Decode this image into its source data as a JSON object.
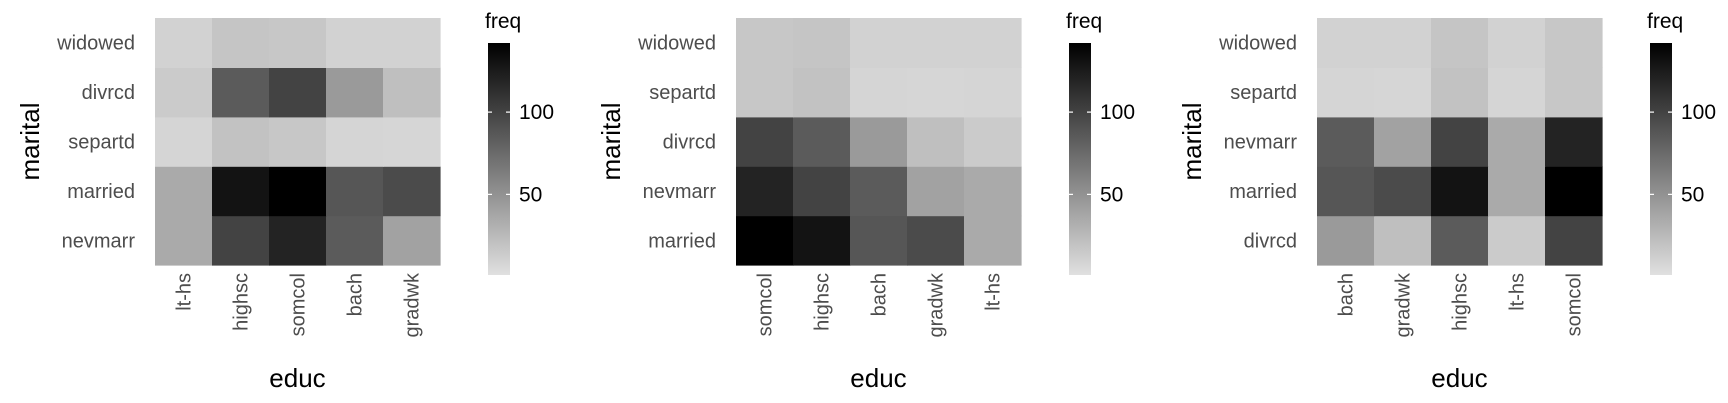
{
  "chart_data": [
    {
      "type": "heatmap",
      "xlabel": "educ",
      "ylabel": "marital",
      "x_categories": [
        "lt-hs",
        "highsc",
        "somcol",
        "bach",
        "gradwk"
      ],
      "y_categories_bottom_to_top": [
        "nevmarr",
        "married",
        "separtd",
        "divrcd",
        "widowed"
      ],
      "values": {
        "widowed": [
          10,
          18,
          17,
          10,
          10
        ],
        "divrcd": [
          14,
          85,
          100,
          45,
          22
        ],
        "separtd": [
          8,
          20,
          17,
          8,
          7
        ],
        "married": [
          35,
          130,
          142,
          88,
          95
        ],
        "nevmarr": [
          35,
          100,
          120,
          85,
          40
        ]
      },
      "fill_scale": {
        "low": "#e0e0e0",
        "high": "#000000",
        "min": 1,
        "max": 142
      },
      "legend": {
        "title": "freq",
        "ticks": [
          50,
          100
        ],
        "placement": "right"
      }
    },
    {
      "type": "heatmap",
      "xlabel": "educ",
      "ylabel": "marital",
      "x_categories": [
        "somcol",
        "highsc",
        "bach",
        "gradwk",
        "lt-hs"
      ],
      "y_categories_bottom_to_top": [
        "married",
        "nevmarr",
        "divrcd",
        "separtd",
        "widowed"
      ],
      "values": {
        "widowed": [
          17,
          18,
          10,
          10,
          10
        ],
        "separtd": [
          17,
          20,
          8,
          7,
          8
        ],
        "divrcd": [
          100,
          85,
          45,
          22,
          14
        ],
        "nevmarr": [
          120,
          100,
          85,
          40,
          35
        ],
        "married": [
          142,
          130,
          88,
          95,
          35
        ]
      },
      "fill_scale": {
        "low": "#e0e0e0",
        "high": "#000000",
        "min": 1,
        "max": 142
      },
      "legend": {
        "title": "freq",
        "ticks": [
          50,
          100
        ],
        "placement": "right"
      }
    },
    {
      "type": "heatmap",
      "xlabel": "educ",
      "ylabel": "marital",
      "x_categories": [
        "bach",
        "gradwk",
        "highsc",
        "lt-hs",
        "somcol"
      ],
      "y_categories_bottom_to_top": [
        "divrcd",
        "married",
        "nevmarr",
        "separtd",
        "widowed"
      ],
      "values": {
        "widowed": [
          10,
          10,
          18,
          10,
          17
        ],
        "separtd": [
          8,
          7,
          20,
          8,
          17
        ],
        "nevmarr": [
          85,
          40,
          100,
          35,
          120
        ],
        "married": [
          88,
          95,
          130,
          35,
          142
        ],
        "divrcd": [
          45,
          22,
          85,
          14,
          100
        ]
      },
      "fill_scale": {
        "low": "#e0e0e0",
        "high": "#000000",
        "min": 1,
        "max": 142
      },
      "legend": {
        "title": "freq",
        "ticks": [
          50,
          100
        ],
        "placement": "right"
      }
    }
  ]
}
